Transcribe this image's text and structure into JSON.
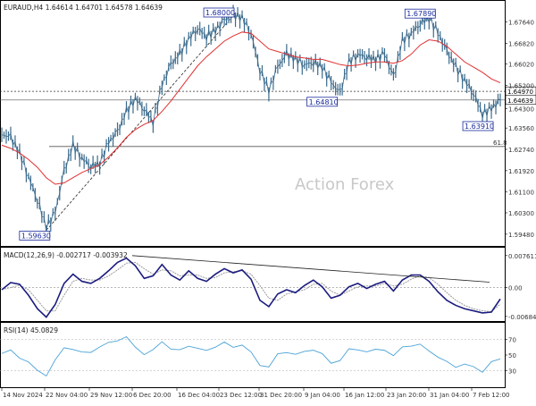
{
  "chart_data": {
    "type": "line",
    "header": "EURAUD,H4  1.64614 1.64701 1.64578 1.64639",
    "watermark": "Action Forex",
    "x_ticks": [
      "14 Nov 2024",
      "22 Nov 04:00",
      "29 Nov 12:00",
      "6 Dec 20:00",
      "16 Dec 04:00",
      "23 Dec 12:00",
      "31 Dec 20:00",
      "9 Jan 04:00",
      "16 Jan 12:00",
      "23 Jan 20:00",
      "31 Jan 04:00",
      "7 Feb 12:00"
    ],
    "price_panel": {
      "ylim": [
        1.592,
        1.68
      ],
      "y_ticks": [
        "1.67640",
        "1.66820",
        "1.66020",
        "1.65200",
        "1.64300",
        "1.63560",
        "1.62740",
        "1.61920",
        "1.61100",
        "1.60300",
        "1.59480"
      ],
      "last_price": "1.64639",
      "reference_price": "1.64970",
      "fib_level": 1.6285,
      "fib_label": "61.8",
      "annotations": [
        {
          "label": "1.59630",
          "x": 50,
          "y": 1.5963
        },
        {
          "label": "1.68000",
          "x": 263,
          "y": 1.68
        },
        {
          "label": "1.64810",
          "x": 380,
          "y": 1.6481
        },
        {
          "label": "1.67890",
          "x": 474,
          "y": 1.6789
        },
        {
          "label": "1.63910",
          "x": 545,
          "y": 1.6391
        }
      ],
      "price_x": [
        0,
        10,
        20,
        30,
        40,
        50,
        60,
        70,
        80,
        90,
        100,
        110,
        120,
        130,
        140,
        150,
        160,
        170,
        180,
        190,
        200,
        210,
        220,
        230,
        240,
        250,
        260,
        270,
        280,
        290,
        300,
        310,
        320,
        330,
        340,
        350,
        360,
        370,
        380,
        390,
        400,
        410,
        420,
        430,
        440,
        450,
        460,
        470,
        480,
        490,
        500,
        510,
        520,
        530,
        540,
        550,
        560
      ],
      "price": [
        1.633,
        1.632,
        1.626,
        1.617,
        1.608,
        1.5975,
        1.603,
        1.619,
        1.629,
        1.624,
        1.621,
        1.622,
        1.63,
        1.634,
        1.642,
        1.647,
        1.643,
        1.638,
        1.652,
        1.66,
        1.664,
        1.67,
        1.674,
        1.671,
        1.673,
        1.677,
        1.679,
        1.678,
        1.672,
        1.658,
        1.65,
        1.659,
        1.664,
        1.662,
        1.66,
        1.661,
        1.659,
        1.653,
        1.649,
        1.661,
        1.664,
        1.663,
        1.662,
        1.664,
        1.655,
        1.669,
        1.672,
        1.676,
        1.678,
        1.672,
        1.665,
        1.659,
        1.654,
        1.649,
        1.641,
        1.643,
        1.6464
      ],
      "ma": [
        1.629,
        1.6278,
        1.626,
        1.6235,
        1.6205,
        1.6165,
        1.614,
        1.6145,
        1.6165,
        1.6185,
        1.62,
        1.6215,
        1.6245,
        1.628,
        1.632,
        1.635,
        1.637,
        1.6385,
        1.642,
        1.646,
        1.6505,
        1.655,
        1.6595,
        1.663,
        1.666,
        1.669,
        1.671,
        1.6725,
        1.672,
        1.669,
        1.666,
        1.665,
        1.664,
        1.663,
        1.6625,
        1.662,
        1.662,
        1.661,
        1.66,
        1.6595,
        1.6598,
        1.6605,
        1.661,
        1.661,
        1.6605,
        1.6615,
        1.664,
        1.6675,
        1.6695,
        1.669,
        1.667,
        1.664,
        1.661,
        1.659,
        1.657,
        1.6545,
        1.653
      ]
    },
    "macd_panel": {
      "label": "MACD(12,26,9) -0.002717 -0.003932",
      "ylim": [
        -0.0075,
        0.0082
      ],
      "y_ticks": [
        "0.007611",
        "0.00",
        "-0.00684"
      ],
      "main": [
        -0.0005,
        0.0012,
        0.0008,
        -0.0018,
        -0.005,
        -0.007,
        -0.004,
        0.001,
        0.0032,
        0.0015,
        0.001,
        0.0022,
        0.004,
        0.006,
        0.007,
        0.0052,
        0.0022,
        0.0028,
        0.0055,
        0.003,
        0.0018,
        0.004,
        0.0022,
        0.0015,
        0.0032,
        0.0045,
        0.0035,
        0.0042,
        0.002,
        -0.003,
        -0.0045,
        -0.0015,
        -0.0005,
        -0.0012,
        0.0005,
        0.0018,
        0.0002,
        -0.0025,
        -0.0018,
        0.0002,
        0.001,
        -0.0002,
        0.0008,
        0.0015,
        -0.0008,
        0.0018,
        0.003,
        0.003,
        0.0015,
        -0.001,
        -0.003,
        -0.0042,
        -0.005,
        -0.0055,
        -0.006,
        -0.0058,
        -0.0027
      ],
      "signal": [
        -0.0004,
        0.0,
        0.0006,
        -0.0005,
        -0.003,
        -0.0055,
        -0.0055,
        -0.0018,
        0.0015,
        0.0022,
        0.0018,
        0.0018,
        0.0028,
        0.0042,
        0.0058,
        0.006,
        0.0045,
        0.0032,
        0.0042,
        0.004,
        0.0028,
        0.003,
        0.003,
        0.0022,
        0.0024,
        0.0035,
        0.0038,
        0.004,
        0.0032,
        0.0005,
        -0.0025,
        -0.003,
        -0.0015,
        -0.001,
        -0.0005,
        0.0008,
        0.001,
        -0.0008,
        -0.0018,
        -0.0008,
        0.0002,
        0.0004,
        0.0004,
        0.001,
        0.0004,
        0.0008,
        0.002,
        0.0028,
        0.0024,
        0.0008,
        -0.0012,
        -0.003,
        -0.0042,
        -0.005,
        -0.0055,
        -0.0057,
        -0.0039
      ],
      "trend_from": [
        148,
        0.0076
      ],
      "trend_to": [
        548,
        0.0013
      ]
    },
    "rsi_panel": {
      "label": "RSI(14) 45.0829",
      "ylim": [
        10,
        90
      ],
      "y_ticks": [
        "70",
        "50",
        "30"
      ],
      "levels": [
        70,
        30
      ],
      "values": [
        52,
        55,
        48,
        40,
        30,
        25,
        42,
        60,
        58,
        52,
        55,
        60,
        65,
        70,
        72,
        60,
        52,
        55,
        68,
        58,
        55,
        63,
        58,
        55,
        62,
        65,
        60,
        64,
        52,
        38,
        35,
        50,
        55,
        50,
        54,
        58,
        50,
        40,
        44,
        56,
        58,
        54,
        56,
        58,
        48,
        60,
        63,
        62,
        56,
        48,
        40,
        36,
        38,
        34,
        30,
        40,
        45
      ]
    }
  }
}
